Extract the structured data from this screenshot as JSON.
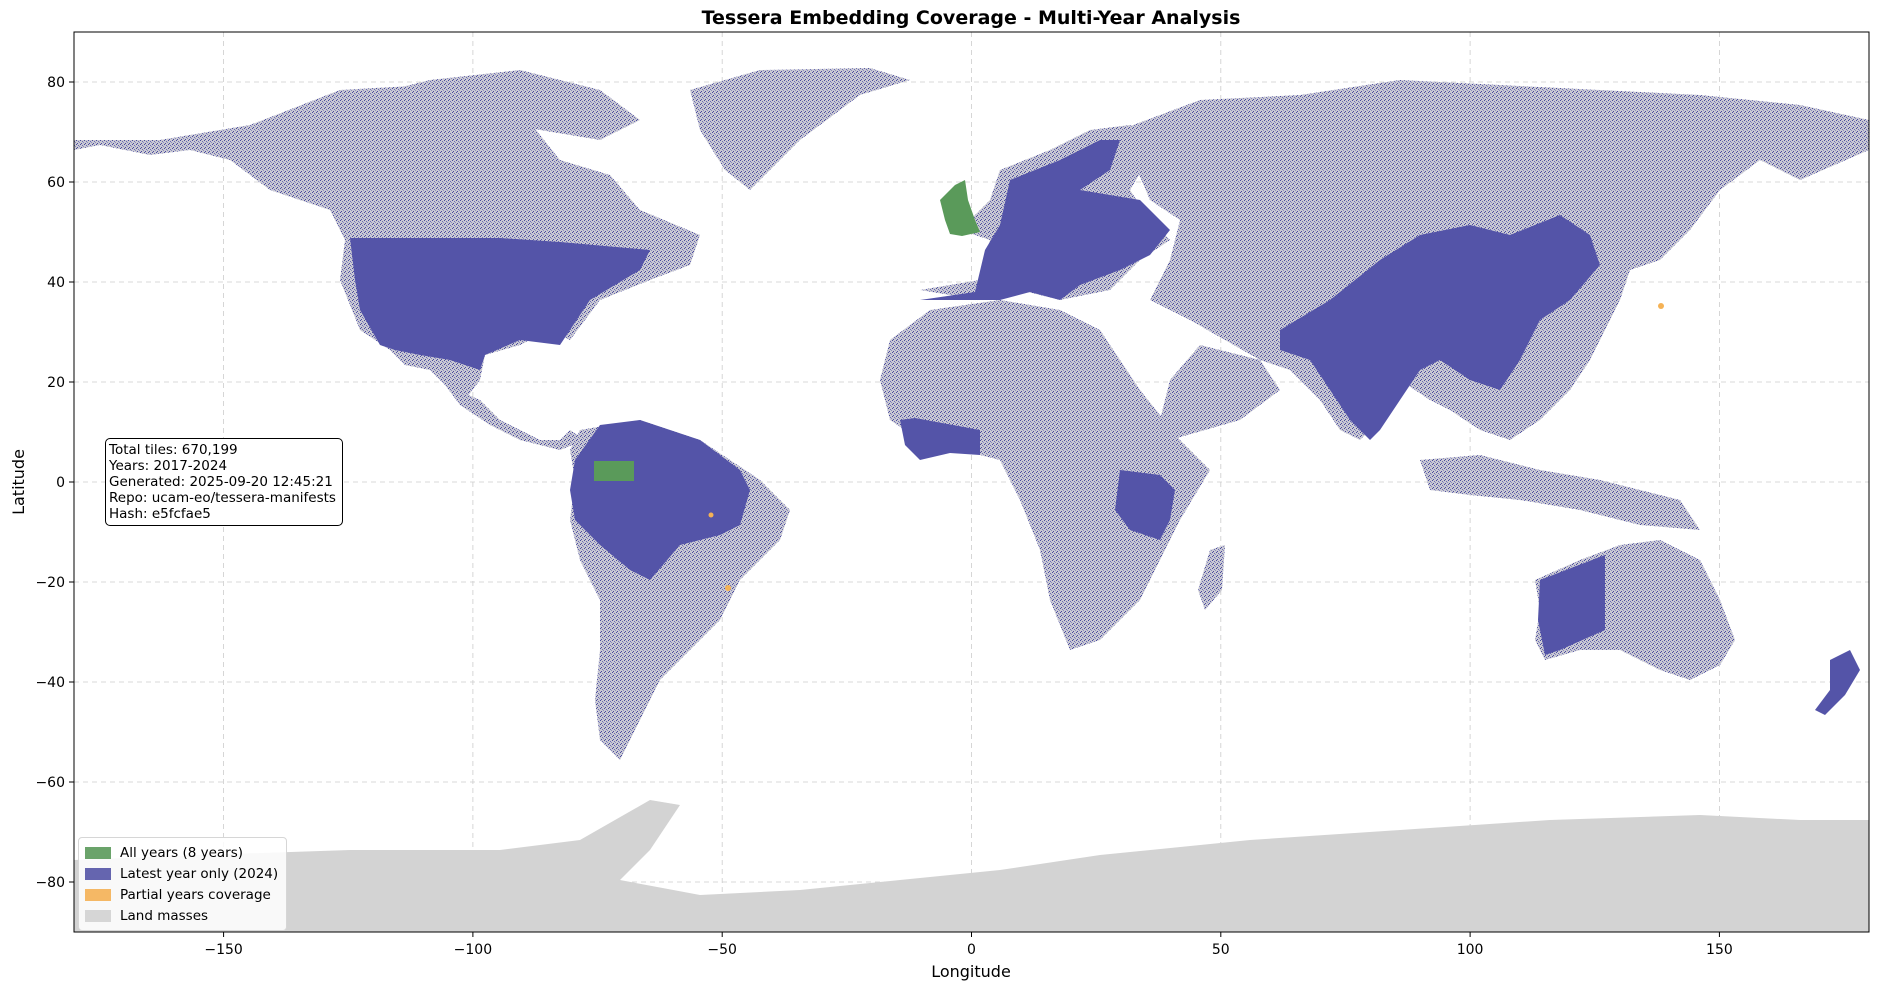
{
  "chart_data": {
    "type": "map",
    "title": "Tessera Embedding Coverage - Multi-Year Analysis",
    "xlabel": "Longitude",
    "ylabel": "Latitude",
    "xlim": [
      -180,
      180
    ],
    "ylim": [
      -90,
      90
    ],
    "x_ticks": [
      -150,
      -100,
      -50,
      0,
      50,
      100,
      150
    ],
    "y_ticks": [
      80,
      60,
      40,
      20,
      0,
      -20,
      -40,
      -60,
      -80
    ],
    "grid": true,
    "legend_position": "lower-left",
    "legend": [
      {
        "label": "All years (8 years)",
        "color": "#5a9a5a"
      },
      {
        "label": "Latest year only (2024)",
        "color": "#5555a8"
      },
      {
        "label": "Partial years coverage",
        "color": "#f5b255"
      },
      {
        "label": "Land masses",
        "color": "#d3d3d3"
      }
    ],
    "info_box": [
      "Total tiles: 670,199",
      "Years: 2017-2024",
      "Generated: 2025-09-20 12:45:21",
      "Repo: ucam-eo/tessera-manifests",
      "Hash: e5fcfae5"
    ],
    "coverage_regions": [
      {
        "region": "Contiguous United States",
        "coverage": "latest_year"
      },
      {
        "region": "Europe",
        "coverage": "latest_year"
      },
      {
        "region": "Great Britain",
        "coverage": "all_years"
      },
      {
        "region": "Amazon basin (Brazil)",
        "coverage": "latest_year"
      },
      {
        "region": "Western Amazon block",
        "coverage": "all_years"
      },
      {
        "region": "West Africa",
        "coverage": "latest_year"
      },
      {
        "region": "East Africa",
        "coverage": "latest_year"
      },
      {
        "region": "China",
        "coverage": "latest_year"
      },
      {
        "region": "India",
        "coverage": "latest_year"
      },
      {
        "region": "Western Australia",
        "coverage": "latest_year"
      },
      {
        "region": "New Zealand",
        "coverage": "latest_year"
      },
      {
        "region": "Japan (Tokyo area)",
        "coverage": "partial_years"
      },
      {
        "region": "Southern Brazil",
        "coverage": "partial_years"
      }
    ]
  }
}
